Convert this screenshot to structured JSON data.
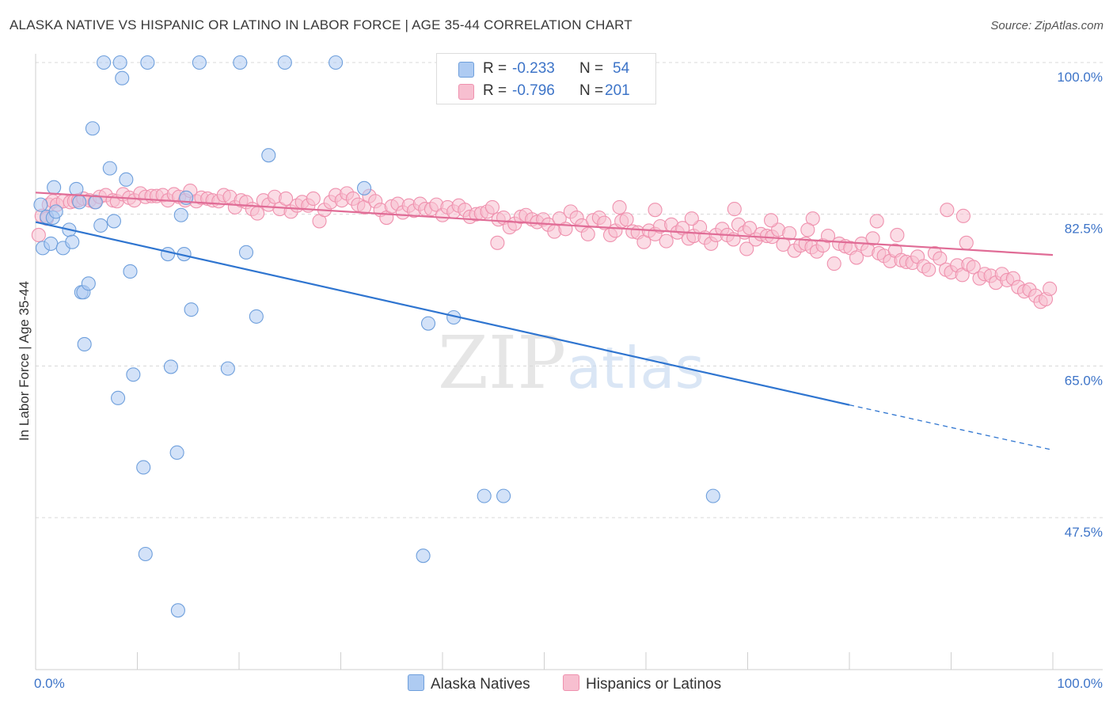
{
  "title": "ALASKA NATIVE VS HISPANIC OR LATINO IN LABOR FORCE | AGE 35-44 CORRELATION CHART",
  "source_prefix": "Source: ",
  "source_name": "ZipAtlas.com",
  "watermark": {
    "part1": "ZIP",
    "part2": "atlas"
  },
  "legend": {
    "r_label": "R =",
    "n_label": "N =",
    "rows": [
      {
        "r": "-0.233",
        "n": "54"
      },
      {
        "r": "-0.796",
        "n": "201"
      }
    ]
  },
  "colors": {
    "alaska_fill": "#aecbf2",
    "alaska_stroke": "#6e9fdc",
    "alaska_line": "#2f75d0",
    "hisp_fill": "#f7bfd0",
    "hisp_stroke": "#ef91ae",
    "hisp_line": "#e06c96",
    "tick_text": "#3d74c8",
    "grid": "#d8d8d8"
  },
  "chart_data": {
    "type": "scatter",
    "title": "ALASKA NATIVE VS HISPANIC OR LATINO IN LABOR FORCE | AGE 35-44 CORRELATION CHART",
    "xlabel": "",
    "ylabel": "In Labor Force | Age 35-44",
    "xlim": [
      0,
      100
    ],
    "ylim": [
      31,
      102
    ],
    "x_tick_labels": [
      "0.0%",
      "100.0%"
    ],
    "y_ticks": [
      100.0,
      82.5,
      65.0,
      47.5
    ],
    "y_tick_labels": [
      "100.0%",
      "82.5%",
      "65.0%",
      "47.5%"
    ],
    "grid": true,
    "series": [
      {
        "name": "Alaska Natives",
        "r": -0.233,
        "n": 54,
        "trend": {
          "x0": 0,
          "y0": 81.6,
          "x1": 80,
          "y1": 60.5,
          "dashed_to_x": 100,
          "dashed_to_y": 55.3
        },
        "points": [
          [
            0.5,
            83.6
          ],
          [
            0.7,
            78.6
          ],
          [
            1.1,
            82.2
          ],
          [
            1.5,
            79.1
          ],
          [
            1.7,
            82.1
          ],
          [
            2.0,
            82.8
          ],
          [
            1.8,
            85.6
          ],
          [
            2.7,
            78.6
          ],
          [
            3.3,
            80.7
          ],
          [
            3.6,
            79.3
          ],
          [
            4.0,
            85.4
          ],
          [
            4.3,
            83.9
          ],
          [
            4.5,
            73.5
          ],
          [
            4.7,
            73.5
          ],
          [
            4.8,
            67.5
          ],
          [
            5.2,
            74.5
          ],
          [
            5.6,
            92.4
          ],
          [
            5.9,
            83.9
          ],
          [
            6.4,
            81.2
          ],
          [
            6.7,
            100
          ],
          [
            7.3,
            87.8
          ],
          [
            7.7,
            81.7
          ],
          [
            8.1,
            61.3
          ],
          [
            8.3,
            100
          ],
          [
            8.5,
            98.2
          ],
          [
            8.9,
            86.5
          ],
          [
            9.3,
            75.9
          ],
          [
            9.6,
            64.0
          ],
          [
            10.6,
            53.3
          ],
          [
            10.8,
            43.3
          ],
          [
            11.0,
            100
          ],
          [
            13.0,
            77.9
          ],
          [
            13.3,
            64.9
          ],
          [
            13.9,
            55.0
          ],
          [
            14.0,
            36.8
          ],
          [
            14.3,
            82.4
          ],
          [
            14.6,
            77.9
          ],
          [
            14.8,
            84.4
          ],
          [
            15.3,
            71.5
          ],
          [
            16.1,
            100
          ],
          [
            18.9,
            64.7
          ],
          [
            20.1,
            100
          ],
          [
            20.7,
            78.1
          ],
          [
            21.7,
            70.7
          ],
          [
            22.9,
            89.3
          ],
          [
            24.5,
            100
          ],
          [
            29.5,
            100
          ],
          [
            32.3,
            85.5
          ],
          [
            38.1,
            43.1
          ],
          [
            38.6,
            69.9
          ],
          [
            41.1,
            70.6
          ],
          [
            44.1,
            50.0
          ],
          [
            46.0,
            50.0
          ],
          [
            66.6,
            50.0
          ]
        ]
      },
      {
        "name": "Hispanics or Latinos",
        "r": -0.796,
        "n": 201,
        "trend": {
          "x0": 0,
          "y0": 85.0,
          "x1": 100,
          "y1": 77.8
        },
        "points": [
          [
            0.3,
            80.1
          ],
          [
            0.6,
            82.3
          ],
          [
            1.1,
            82.0
          ],
          [
            1.3,
            83.6
          ],
          [
            1.7,
            84.0
          ],
          [
            2.1,
            83.6
          ],
          [
            2.7,
            84.0
          ],
          [
            3.4,
            83.9
          ],
          [
            3.8,
            84.0
          ],
          [
            4.2,
            84.1
          ],
          [
            4.7,
            84.3
          ],
          [
            5.3,
            84.1
          ],
          [
            5.8,
            83.9
          ],
          [
            6.3,
            84.5
          ],
          [
            6.9,
            84.7
          ],
          [
            7.6,
            84.1
          ],
          [
            8.0,
            84.0
          ],
          [
            8.6,
            84.8
          ],
          [
            9.2,
            84.4
          ],
          [
            9.7,
            84.1
          ],
          [
            10.3,
            84.9
          ],
          [
            10.8,
            84.5
          ],
          [
            11.4,
            84.6
          ],
          [
            11.9,
            84.6
          ],
          [
            12.5,
            84.7
          ],
          [
            13.0,
            84.1
          ],
          [
            13.6,
            84.8
          ],
          [
            14.1,
            84.5
          ],
          [
            14.7,
            84.1
          ],
          [
            15.2,
            85.2
          ],
          [
            15.8,
            84.0
          ],
          [
            16.3,
            84.4
          ],
          [
            16.9,
            84.3
          ],
          [
            17.4,
            84.1
          ],
          [
            18.0,
            84.0
          ],
          [
            18.5,
            84.7
          ],
          [
            19.1,
            84.5
          ],
          [
            19.6,
            83.3
          ],
          [
            20.2,
            84.1
          ],
          [
            20.7,
            83.9
          ],
          [
            21.3,
            83.1
          ],
          [
            21.8,
            82.6
          ],
          [
            22.4,
            84.1
          ],
          [
            22.9,
            83.6
          ],
          [
            23.5,
            84.5
          ],
          [
            24.0,
            83.1
          ],
          [
            24.6,
            84.3
          ],
          [
            25.1,
            82.8
          ],
          [
            25.7,
            83.5
          ],
          [
            26.2,
            83.9
          ],
          [
            26.8,
            83.5
          ],
          [
            27.3,
            84.3
          ],
          [
            27.9,
            81.7
          ],
          [
            28.4,
            83.0
          ],
          [
            29.0,
            83.9
          ],
          [
            29.5,
            84.7
          ],
          [
            30.1,
            84.1
          ],
          [
            30.6,
            84.9
          ],
          [
            31.2,
            84.3
          ],
          [
            31.7,
            83.6
          ],
          [
            32.3,
            83.3
          ],
          [
            32.8,
            84.6
          ],
          [
            33.4,
            84.0
          ],
          [
            33.9,
            83.0
          ],
          [
            34.5,
            82.1
          ],
          [
            35.0,
            83.4
          ],
          [
            35.6,
            83.7
          ],
          [
            36.1,
            82.7
          ],
          [
            36.7,
            83.5
          ],
          [
            37.2,
            82.9
          ],
          [
            37.8,
            83.7
          ],
          [
            38.3,
            83.1
          ],
          [
            38.9,
            83.1
          ],
          [
            39.4,
            83.6
          ],
          [
            40.0,
            82.4
          ],
          [
            40.5,
            83.3
          ],
          [
            41.1,
            82.8
          ],
          [
            41.6,
            83.5
          ],
          [
            42.2,
            83.0
          ],
          [
            42.7,
            82.2
          ],
          [
            43.3,
            82.5
          ],
          [
            43.8,
            82.6
          ],
          [
            44.4,
            82.8
          ],
          [
            44.9,
            83.3
          ],
          [
            45.5,
            81.9
          ],
          [
            46.0,
            82.1
          ],
          [
            46.6,
            81.0
          ],
          [
            47.1,
            81.4
          ],
          [
            47.7,
            82.2
          ],
          [
            48.2,
            82.4
          ],
          [
            48.8,
            81.9
          ],
          [
            49.3,
            81.6
          ],
          [
            49.9,
            81.9
          ],
          [
            50.4,
            81.3
          ],
          [
            51.0,
            80.5
          ],
          [
            51.5,
            82.0
          ],
          [
            52.1,
            80.8
          ],
          [
            52.6,
            82.8
          ],
          [
            53.2,
            82.1
          ],
          [
            53.7,
            81.2
          ],
          [
            54.3,
            80.2
          ],
          [
            54.8,
            81.8
          ],
          [
            55.4,
            82.1
          ],
          [
            55.9,
            81.5
          ],
          [
            56.5,
            80.1
          ],
          [
            57.0,
            80.6
          ],
          [
            57.6,
            81.7
          ],
          [
            58.1,
            81.9
          ],
          [
            58.7,
            80.5
          ],
          [
            59.2,
            80.4
          ],
          [
            59.8,
            79.3
          ],
          [
            60.3,
            80.6
          ],
          [
            60.9,
            80.2
          ],
          [
            61.4,
            81.1
          ],
          [
            62.0,
            79.4
          ],
          [
            62.5,
            81.3
          ],
          [
            63.1,
            80.4
          ],
          [
            63.6,
            80.9
          ],
          [
            64.2,
            79.7
          ],
          [
            64.7,
            80.0
          ],
          [
            65.3,
            81.0
          ],
          [
            65.8,
            79.8
          ],
          [
            66.4,
            79.1
          ],
          [
            66.9,
            80.1
          ],
          [
            67.5,
            80.8
          ],
          [
            68.0,
            80.1
          ],
          [
            68.6,
            79.6
          ],
          [
            69.1,
            81.3
          ],
          [
            69.7,
            80.4
          ],
          [
            70.2,
            80.9
          ],
          [
            70.8,
            79.6
          ],
          [
            71.3,
            80.2
          ],
          [
            71.9,
            80.0
          ],
          [
            72.4,
            79.9
          ],
          [
            73.0,
            80.7
          ],
          [
            73.5,
            79.0
          ],
          [
            74.1,
            80.3
          ],
          [
            74.6,
            78.3
          ],
          [
            75.2,
            78.9
          ],
          [
            75.7,
            79.1
          ],
          [
            76.3,
            78.7
          ],
          [
            76.8,
            78.2
          ],
          [
            77.4,
            78.9
          ],
          [
            77.9,
            80.0
          ],
          [
            78.5,
            76.8
          ],
          [
            79.0,
            79.1
          ],
          [
            79.6,
            78.8
          ],
          [
            80.1,
            78.6
          ],
          [
            80.7,
            77.5
          ],
          [
            81.2,
            79.1
          ],
          [
            81.8,
            78.4
          ],
          [
            82.3,
            79.7
          ],
          [
            82.9,
            78.0
          ],
          [
            83.4,
            77.7
          ],
          [
            84.0,
            77.1
          ],
          [
            84.5,
            78.3
          ],
          [
            85.1,
            77.2
          ],
          [
            85.6,
            77.0
          ],
          [
            86.2,
            76.9
          ],
          [
            86.7,
            77.6
          ],
          [
            87.3,
            76.5
          ],
          [
            87.8,
            76.1
          ],
          [
            88.4,
            78.0
          ],
          [
            88.9,
            77.4
          ],
          [
            89.5,
            76.1
          ],
          [
            90.0,
            75.8
          ],
          [
            90.6,
            76.6
          ],
          [
            91.1,
            75.5
          ],
          [
            91.7,
            76.7
          ],
          [
            92.2,
            76.4
          ],
          [
            92.8,
            75.1
          ],
          [
            93.3,
            75.6
          ],
          [
            93.9,
            75.4
          ],
          [
            94.4,
            74.6
          ],
          [
            95.0,
            75.6
          ],
          [
            95.5,
            74.9
          ],
          [
            96.1,
            75.1
          ],
          [
            96.6,
            74.1
          ],
          [
            97.2,
            73.6
          ],
          [
            97.7,
            73.8
          ],
          [
            98.3,
            73.1
          ],
          [
            98.8,
            72.4
          ],
          [
            99.3,
            72.7
          ],
          [
            99.7,
            73.9
          ],
          [
            57.4,
            83.3
          ],
          [
            60.9,
            83.0
          ],
          [
            64.5,
            82.0
          ],
          [
            68.7,
            83.1
          ],
          [
            72.3,
            81.8
          ],
          [
            76.4,
            82.0
          ],
          [
            82.7,
            81.7
          ],
          [
            89.6,
            83.0
          ],
          [
            91.2,
            82.3
          ],
          [
            45.4,
            79.2
          ],
          [
            69.9,
            78.5
          ],
          [
            75.9,
            80.7
          ],
          [
            84.7,
            80.1
          ],
          [
            91.5,
            79.2
          ]
        ]
      }
    ]
  },
  "axis": {
    "ylabel": "In Labor Force | Age 35-44"
  },
  "bottom_legend": [
    "Alaska Natives",
    "Hispanics or Latinos"
  ]
}
